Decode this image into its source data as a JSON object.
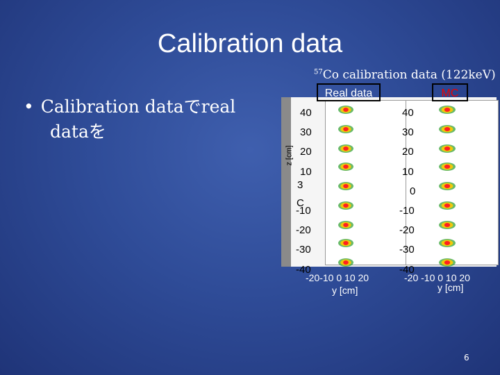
{
  "slide": {
    "title": "Calibration data",
    "caption_sup": "57",
    "caption_text": "Co calibration data (122keV)",
    "bullet_line1": "Calibration dataでreal",
    "bullet_line2": "dataを",
    "page_number": "6"
  },
  "panels": {
    "real_label": "Real data",
    "mc_label": "MC",
    "y_ticks": [
      "40",
      "30",
      "20",
      "10",
      "0",
      "-10",
      "-20",
      "-30",
      "-40"
    ],
    "real_x_ticks": "-20-10  0  10 20",
    "mc_x_ticks": "-20 -10  0  10 20",
    "x_title": "y [cm]",
    "y_title": "z [cm]",
    "overlap_marks": [
      "3",
      "C"
    ]
  },
  "colors": {
    "mc_label": "#e00000",
    "hot": "#ff2020",
    "mid": "#ffcc00",
    "cold": "#2a9d2a"
  }
}
